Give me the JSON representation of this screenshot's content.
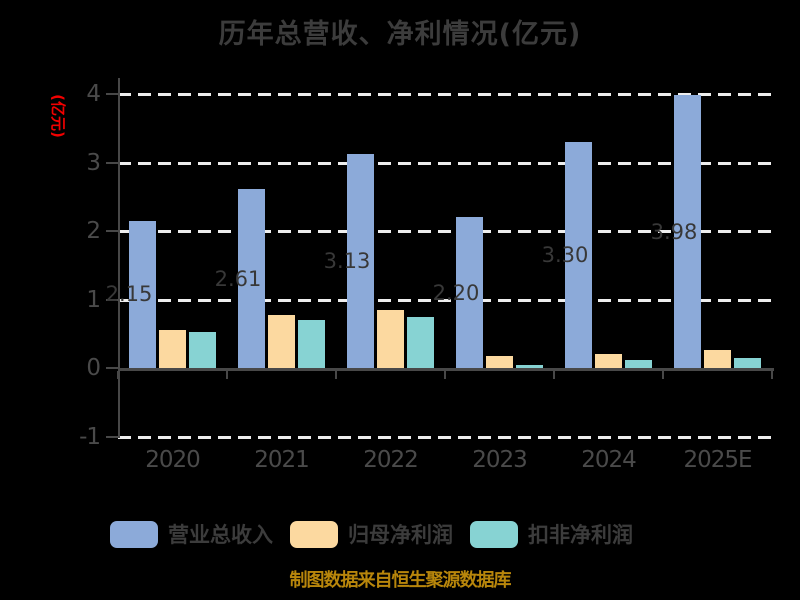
{
  "title": "历年总营收、净利情况(亿元)",
  "y_axis_label": "(亿元)",
  "source_note": "制图数据来自恒生聚源数据库",
  "colors": {
    "background": "#000000",
    "title_text": "#3c3c3c",
    "axis_text": "#4a4a4a",
    "axis_line": "#484848",
    "gridline": "#eeeeee",
    "y_axis_label_red": "#f20000",
    "source_text_gold": "#b8860b",
    "bar_label": "#383838",
    "revenue_blue": "#8caad9",
    "parent_profit_orange": "#fcd9a0",
    "nongaap_profit_teal": "#87d3d3"
  },
  "legend": [
    {
      "label": "营业总收入",
      "color": "#8caad9",
      "key": "revenue"
    },
    {
      "label": "归母净利润",
      "color": "#fcd9a0",
      "key": "parent-net-profit"
    },
    {
      "label": "扣非净利润",
      "color": "#87d3d3",
      "key": "nongaap-net-profit"
    }
  ],
  "chart_data": {
    "type": "bar",
    "title": "历年总营收、净利情况(亿元)",
    "categories": [
      "2020",
      "2021",
      "2022",
      "2023",
      "2024",
      "2025E"
    ],
    "series": [
      {
        "name": "营业总收入",
        "key": "revenue",
        "color": "#8caad9",
        "values": [
          2.15,
          2.61,
          3.13,
          2.2,
          3.3,
          3.98
        ],
        "data_labels": [
          "2.15",
          "2.61",
          "3.13",
          "2.20",
          "3.30",
          "3.98"
        ]
      },
      {
        "name": "归母净利润",
        "key": "parent-net-profit",
        "color": "#fcd9a0",
        "values": [
          0.55,
          0.77,
          0.84,
          0.17,
          0.21,
          0.26
        ],
        "data_labels": null
      },
      {
        "name": "扣非净利润",
        "key": "nongaap-net-profit",
        "color": "#87d3d3",
        "values": [
          0.53,
          0.7,
          0.74,
          0.03,
          0.12,
          0.14
        ],
        "data_labels": null
      }
    ],
    "ylabel": "(亿元)",
    "ylim": [
      -1,
      4.3
    ],
    "yticks": [
      4,
      3,
      2,
      1,
      0,
      -1
    ],
    "ytick_labels": [
      "4",
      "3",
      "2",
      "1",
      "0",
      "-1"
    ],
    "gridlines_at": [
      4,
      3,
      2,
      1,
      -1
    ],
    "grid_style": "dashed",
    "legend_position": "bottom"
  }
}
